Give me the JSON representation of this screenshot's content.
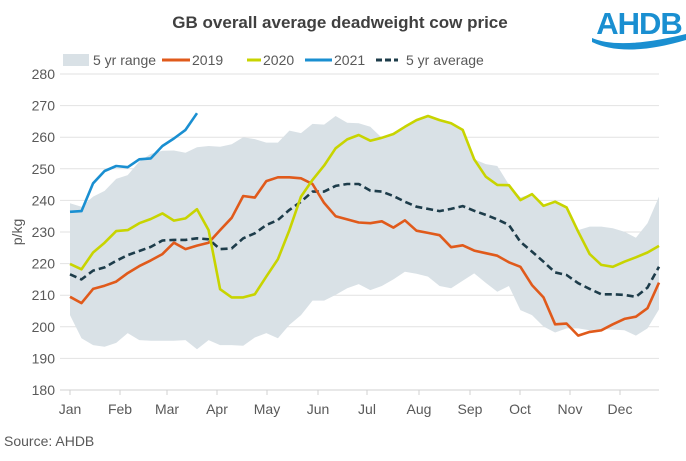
{
  "logo": {
    "text": "AHDB",
    "color": "#1a8fd1"
  },
  "source": "Source: AHDB",
  "chart_data": {
    "type": "line",
    "title": "GB overall average deadweight cow price",
    "ylabel": "p/kg",
    "xlabel": "",
    "ylim": [
      180,
      280
    ],
    "yticks": [
      180,
      190,
      200,
      210,
      220,
      230,
      240,
      250,
      260,
      270,
      280
    ],
    "x_unit": "week of year",
    "xlim": [
      1,
      52
    ],
    "month_labels": [
      "Jan",
      "Feb",
      "Mar",
      "Apr",
      "May",
      "Jun",
      "Jul",
      "Aug",
      "Sep",
      "Oct",
      "Nov",
      "Dec"
    ],
    "grid": true,
    "legend_position": "top",
    "range": {
      "name": "5 yr range",
      "color": "#d9e1e6",
      "upper": [
        239.1,
        238,
        241.2,
        243,
        246.8,
        248,
        252.3,
        254.7,
        255.7,
        255.8,
        255.1,
        256.8,
        257.2,
        257,
        257.8,
        260,
        259.4,
        258.3,
        258.3,
        262.1,
        261.3,
        264.2,
        264,
        266.7,
        264.6,
        264.4,
        263.3,
        259.8,
        261,
        263.3,
        265.4,
        266.7,
        265.4,
        264.4,
        262.3,
        253,
        251.5,
        250.9,
        245,
        241,
        242,
        238.3,
        239.6,
        237.8,
        230.6,
        231.7,
        231.7,
        231.2,
        230.1,
        228.2,
        232.8,
        241.2
      ],
      "lower": [
        203.7,
        196.4,
        194.2,
        193.7,
        194.9,
        198,
        195.8,
        195.6,
        195.6,
        195.6,
        195.8,
        192.9,
        195.8,
        194.2,
        194.2,
        194,
        196.6,
        198,
        196.4,
        200.6,
        203.7,
        208.3,
        208.3,
        210.1,
        212.2,
        213.5,
        211.6,
        212.9,
        215,
        217.4,
        216.8,
        215.9,
        212.9,
        212.2,
        214.6,
        216.9,
        213.9,
        211.1,
        212.9,
        205.3,
        203.7,
        200.1,
        198.2,
        199.5,
        199.5,
        198.9,
        199.3,
        199.1,
        198.9,
        197.2,
        199.5,
        205.5
      ]
    },
    "series": [
      {
        "name": "2019",
        "color": "#e05a1b",
        "dashed": false,
        "values": [
          209.5,
          207.5,
          212,
          213,
          214.3,
          217,
          219.2,
          221,
          223,
          226.6,
          224.6,
          225.7,
          226.6,
          230.6,
          234.5,
          241.4,
          240.9,
          246.1,
          247.3,
          247.3,
          247,
          245.2,
          239.2,
          235,
          234,
          233,
          232.8,
          233.4,
          231.4,
          233.7,
          230.4,
          229.7,
          229,
          225.2,
          225.8,
          224.1,
          223.3,
          222.5,
          220.4,
          219,
          213.2,
          209.3,
          200.8,
          201,
          197.2,
          198.4,
          198.9,
          200.8,
          202.5,
          203.2,
          205.9,
          214
        ]
      },
      {
        "name": "2020",
        "color": "#c8d400",
        "dashed": false,
        "values": [
          219.9,
          218.2,
          223.5,
          226.6,
          230.3,
          230.6,
          232.8,
          234.1,
          235.9,
          233.6,
          234.3,
          237.2,
          230.6,
          211.9,
          209.3,
          209.3,
          210.3,
          215.9,
          221.4,
          230.6,
          241.2,
          246.5,
          251,
          256.5,
          259.3,
          260.7,
          258.9,
          259.8,
          261,
          263.3,
          265.4,
          266.7,
          265.4,
          264.4,
          262.3,
          253,
          247.5,
          244.9,
          244.8,
          240.1,
          242,
          238.3,
          239.6,
          237.8,
          230.1,
          223,
          219.6,
          219,
          220.6,
          222,
          223.5,
          225.6
        ]
      },
      {
        "name": "2021",
        "color": "#1a8fd1",
        "dashed": false,
        "values": [
          236.4,
          236.6,
          245.4,
          249.3,
          250.9,
          250.5,
          253,
          253.3,
          257.2,
          259.6,
          262.3,
          267.6
        ]
      },
      {
        "name": "5 yr average",
        "color": "#1d3c4a",
        "dashed": true,
        "values": [
          216.6,
          215,
          217.8,
          218.8,
          220.9,
          222.7,
          224,
          225.3,
          227.3,
          227.5,
          227.5,
          228,
          227.7,
          224.6,
          224.8,
          228,
          229.6,
          232.2,
          233.8,
          237,
          239.6,
          242.8,
          242.8,
          244.6,
          245.2,
          245.2,
          243.1,
          242.8,
          241.4,
          239.6,
          238,
          237.3,
          236.6,
          237.3,
          238.2,
          236.7,
          235.4,
          234,
          232.2,
          226.9,
          223.8,
          220.6,
          217.2,
          216.4,
          213.8,
          212,
          210.3,
          210.3,
          210.1,
          209.5,
          212.4,
          219
        ]
      }
    ]
  }
}
